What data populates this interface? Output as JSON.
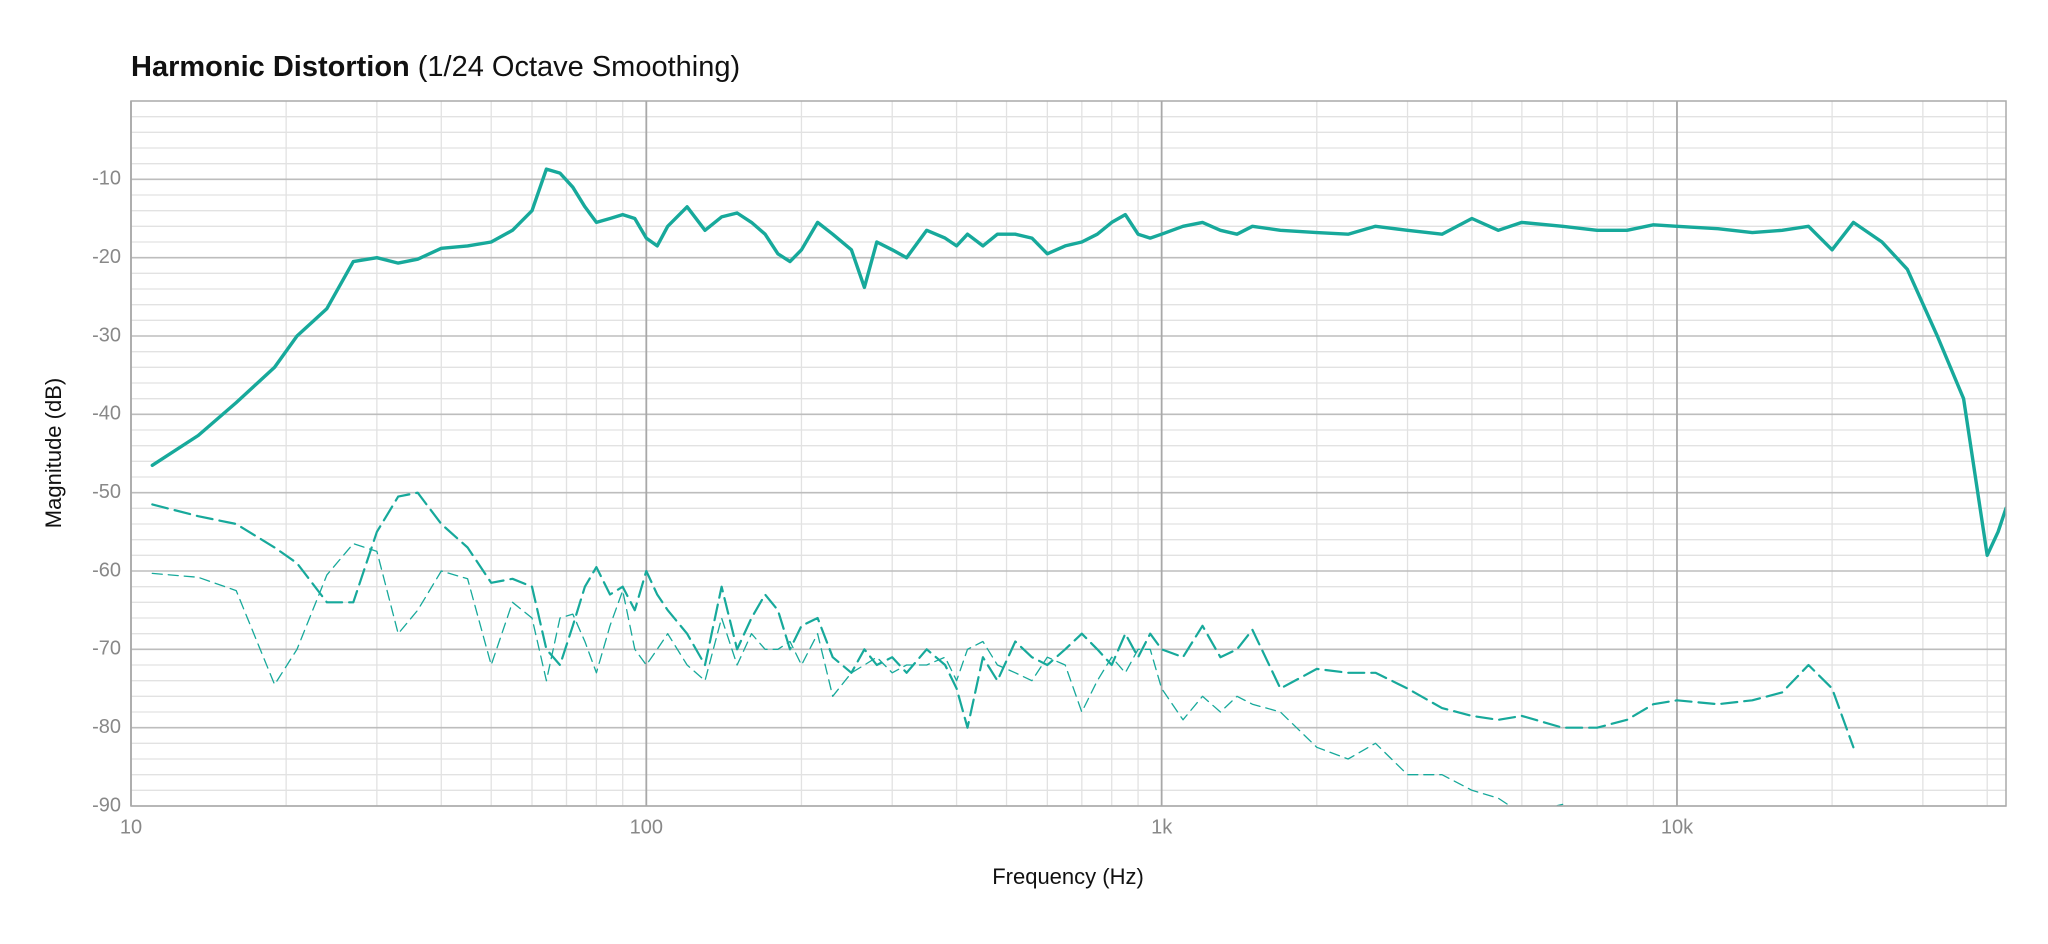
{
  "chart_data": {
    "type": "line",
    "title": "Harmonic Distortion",
    "subtitle": "(1/24 Octave Smoothing)",
    "x_label": "Frequency (Hz)",
    "y_label": "Magnitude (dB)",
    "x_scale": "log",
    "grid": true,
    "xlim": [
      10,
      43500
    ],
    "ylim": [
      -90,
      0
    ],
    "xticks": [
      10,
      100,
      {
        "value": 1000,
        "label": "1k"
      },
      {
        "value": 10000,
        "label": "10k"
      }
    ],
    "yticks": [
      -90,
      -80,
      -70,
      -60,
      -50,
      -40,
      -30,
      -20,
      -10
    ],
    "x": [
      11,
      13.5,
      16,
      19,
      21,
      24,
      27,
      30,
      33,
      36,
      40,
      45,
      50,
      55,
      60,
      64,
      68,
      72,
      76,
      80,
      85,
      90,
      95,
      100,
      105,
      110,
      120,
      130,
      140,
      150,
      160,
      170,
      180,
      190,
      200,
      215,
      230,
      250,
      265,
      280,
      300,
      320,
      350,
      380,
      400,
      420,
      450,
      480,
      520,
      560,
      600,
      650,
      700,
      750,
      800,
      850,
      900,
      950,
      1000,
      1100,
      1200,
      1300,
      1400,
      1500,
      1700,
      2000,
      2300,
      2600,
      3000,
      3500,
      4000,
      4500,
      5000,
      6000,
      7000,
      8000,
      9000,
      10000,
      12000,
      14000,
      16000,
      18000,
      20000,
      22000,
      25000,
      28000,
      32000,
      36000,
      40000,
      42000,
      43500
    ],
    "series": [
      {
        "color": "#17a99b",
        "values": [
          -46.5,
          -42.7,
          -38.5,
          -34,
          -30,
          -26.5,
          -20.5,
          -20,
          -20.7,
          -20.2,
          -18.8,
          -18.5,
          -18,
          -16.5,
          -14,
          -8.7,
          -9.2,
          -11,
          -13.5,
          -15.5,
          -15,
          -14.5,
          -15,
          -17.5,
          -18.5,
          -16,
          -13.5,
          -16.5,
          -14.8,
          -14.3,
          -15.5,
          -17,
          -19.5,
          -20.5,
          -19,
          -15.5,
          -17,
          -19,
          -23.8,
          -18,
          -19,
          -20,
          -16.5,
          -17.5,
          -18.5,
          -17,
          -18.5,
          -17,
          -17,
          -17.5,
          -19.5,
          -18.5,
          -18,
          -17,
          -15.5,
          -14.5,
          -17,
          -17.5,
          -17,
          -16,
          -15.5,
          -16.5,
          -17,
          -16,
          -16.5,
          -16.8,
          -17,
          -16,
          -16.5,
          -17,
          -15,
          -16.5,
          -15.5,
          -16,
          -16.5,
          -16.5,
          -15.8,
          -16,
          -16.3,
          -16.8,
          -16.5,
          -16,
          -19,
          -15.5,
          -18,
          -21.5,
          -30,
          -38,
          -58,
          -55,
          -52
        ]
      },
      {
        "color": "#17a99b",
        "values": [
          -51.5,
          -53,
          -54,
          -57,
          -59,
          -64,
          -64,
          -55,
          -50.5,
          -50,
          -54,
          -57,
          -61.5,
          -61,
          -62,
          -70,
          -72,
          -67,
          -62,
          -59.5,
          -63,
          -62,
          -65,
          -60,
          -63,
          -65,
          -68,
          -72,
          -62,
          -70,
          -66,
          -63,
          -65,
          -70,
          -67,
          -66,
          -71,
          -73,
          -70,
          -72,
          -71,
          -73,
          -70,
          -72,
          -75,
          -80,
          -71,
          -74,
          -69,
          -71,
          -72,
          -70,
          -68,
          -70,
          -72,
          -68,
          -71,
          -68,
          -70,
          -71,
          -67,
          -71,
          -70,
          -67.5,
          -75,
          -72.5,
          -73,
          -73,
          -75,
          -77.5,
          -78.5,
          -79,
          -78.5,
          -80,
          -80,
          -79,
          -77,
          -76.5,
          -77,
          -76.5,
          -75.5,
          -72,
          -75,
          -82.5,
          null,
          null,
          null,
          null,
          null,
          null,
          null
        ]
      },
      {
        "color": "#17a99b",
        "values": [
          -60.3,
          -60.8,
          -62.5,
          -74.5,
          -70,
          -60.5,
          -56.5,
          -57.5,
          -68,
          -65,
          -60,
          -61,
          -72,
          -64,
          -66,
          -74,
          -66,
          -65.5,
          -69,
          -73,
          -67,
          -62.5,
          -70,
          -72,
          -70,
          -68,
          -72,
          -74,
          -66,
          -72,
          -68,
          -70,
          -70,
          -69,
          -72,
          -68,
          -76,
          -73,
          -72,
          -71,
          -73,
          -72,
          -72,
          -71,
          -74,
          -70,
          -69,
          -72,
          -73,
          -74,
          -71,
          -72,
          -78,
          -74,
          -71,
          -73,
          -70,
          -70,
          -75,
          -79,
          -76,
          -78,
          -76,
          -77,
          -78,
          -82.5,
          -84,
          -82,
          -86,
          -86,
          -88,
          -89,
          -91,
          -89.8,
          null,
          null,
          null,
          null,
          null,
          null,
          null,
          null,
          null,
          null,
          null,
          null,
          null,
          null,
          null,
          null,
          null
        ]
      }
    ]
  }
}
